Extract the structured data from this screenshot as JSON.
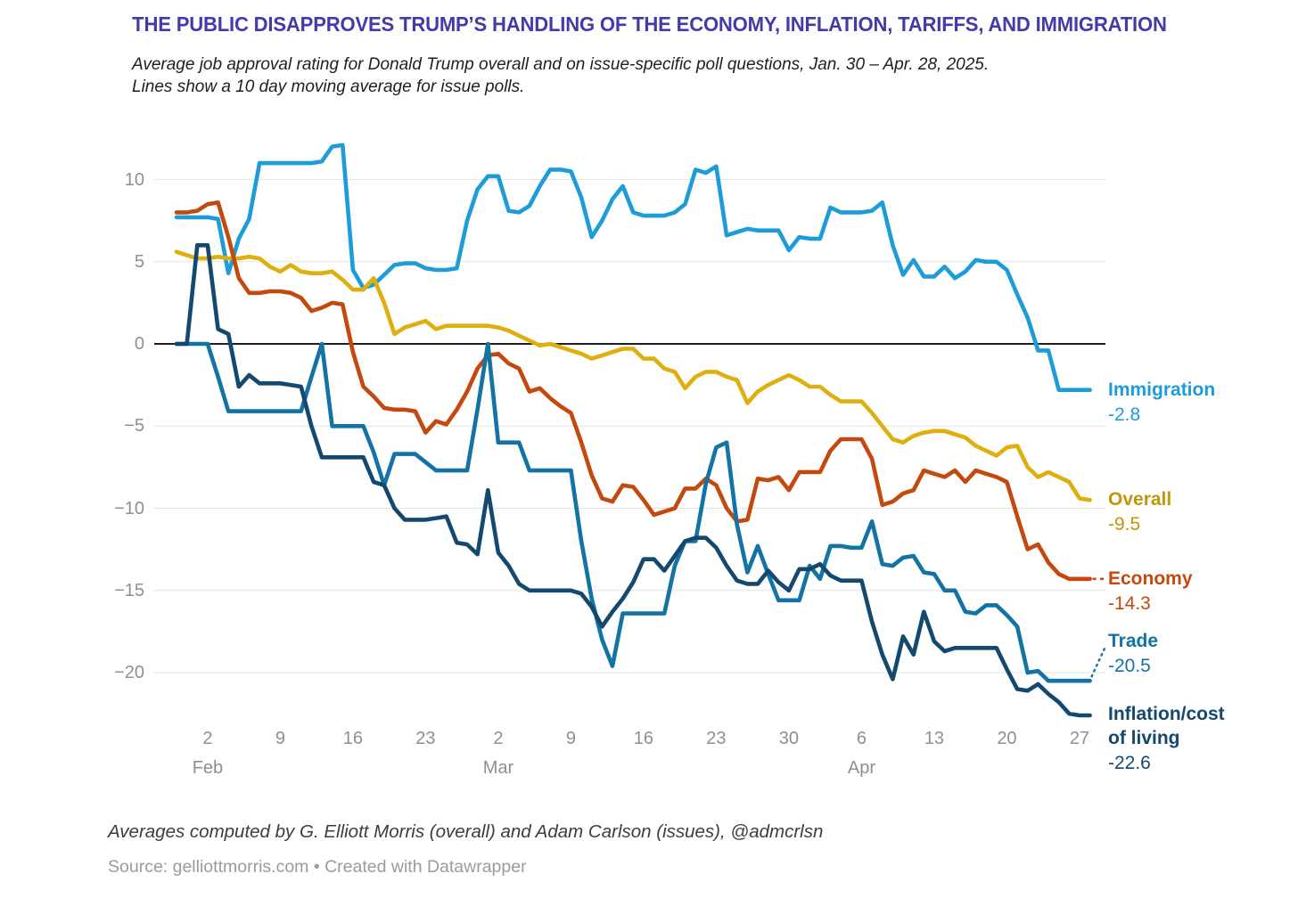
{
  "header": {
    "title": "THE PUBLIC DISAPPROVES TRUMP’S HANDLING OF THE ECONOMY, INFLATION, TARIFFS, AND IMMIGRATION",
    "subtitle_line1": "Average job approval rating for Donald Trump overall and on issue-specific poll questions, Jan. 30 – Apr. 28, 2025.",
    "subtitle_line2": "Lines show a 10 day moving average for issue polls."
  },
  "footer": {
    "credit": "Averages computed by G. Elliott Morris (overall) and Adam Carlson (issues), @admcrlsn",
    "source": "Source: gelliottmorris.com • Created with Datawrapper"
  },
  "colors": {
    "title": "#433BAB",
    "grid": "#e4e4e4",
    "zero_line": "#000000",
    "axis_text": "#8f8f8f"
  },
  "chart_data": {
    "type": "line",
    "title": "Average job approval rating for Donald Trump overall and on issue-specific poll questions",
    "date_range": "Jan. 30 – Apr. 28, 2025",
    "x_unit": "daily samples, day 0 = Jan 30 2025, day 88 = Apr 28 2025",
    "grid": "horizontal gridlines on, solid black zero line",
    "legend_position": "right of line endpoints, colored labels with end values",
    "y_axis": {
      "ticks": [
        10,
        5,
        0,
        -5,
        -10,
        -15,
        -20
      ],
      "range": [
        -24.5,
        13
      ]
    },
    "x_ticks": [
      {
        "day": 3,
        "label": "2",
        "month": "Feb"
      },
      {
        "day": 10,
        "label": "9"
      },
      {
        "day": 17,
        "label": "16"
      },
      {
        "day": 24,
        "label": "23"
      },
      {
        "day": 31,
        "label": "2",
        "month": "Mar"
      },
      {
        "day": 38,
        "label": "9"
      },
      {
        "day": 45,
        "label": "16"
      },
      {
        "day": 52,
        "label": "23"
      },
      {
        "day": 59,
        "label": "30"
      },
      {
        "day": 66,
        "label": "6",
        "month": "Apr"
      },
      {
        "day": 73,
        "label": "13"
      },
      {
        "day": 80,
        "label": "20"
      },
      {
        "day": 87,
        "label": "27"
      }
    ],
    "series": [
      {
        "id": "immigration",
        "label_lines": [
          "Immigration"
        ],
        "value_label": "-2.8",
        "end_value": -2.8,
        "color": "#1E9CD8",
        "values": [
          7.7,
          7.7,
          7.7,
          7.7,
          7.6,
          4.3,
          6.4,
          7.6,
          11.0,
          11.0,
          11.0,
          11.0,
          11.0,
          11.0,
          11.1,
          12.0,
          12.1,
          4.5,
          3.4,
          3.6,
          4.2,
          4.8,
          4.9,
          4.9,
          4.6,
          4.5,
          4.5,
          4.6,
          7.5,
          9.4,
          10.2,
          10.2,
          8.1,
          8.0,
          8.4,
          9.6,
          10.6,
          10.6,
          10.5,
          8.9,
          6.5,
          7.5,
          8.8,
          9.6,
          8.0,
          7.8,
          7.8,
          7.8,
          8.0,
          8.5,
          10.6,
          10.4,
          10.8,
          6.6,
          6.8,
          7.0,
          6.9,
          6.9,
          6.9,
          5.7,
          6.5,
          6.4,
          6.4,
          8.3,
          8.0,
          8.0,
          8.0,
          8.1,
          8.6,
          6.0,
          4.2,
          5.1,
          4.1,
          4.1,
          4.7,
          4.0,
          4.4,
          5.1,
          5.0,
          5.0,
          4.5,
          3.0,
          1.6,
          -0.4,
          -0.4,
          -2.8,
          -2.8,
          -2.8,
          -2.8
        ]
      },
      {
        "id": "overall",
        "label_lines": [
          "Overall"
        ],
        "value_label": "-9.5",
        "end_value": -9.5,
        "color": "#DFAF10",
        "label_color": "#C3940D",
        "values": [
          5.6,
          5.4,
          5.2,
          5.2,
          5.3,
          5.2,
          5.2,
          5.3,
          5.2,
          4.7,
          4.4,
          4.8,
          4.4,
          4.3,
          4.3,
          4.4,
          3.9,
          3.3,
          3.3,
          4.0,
          2.5,
          0.6,
          1.0,
          1.2,
          1.4,
          0.9,
          1.1,
          1.1,
          1.1,
          1.1,
          1.1,
          1.0,
          0.8,
          0.5,
          0.2,
          -0.1,
          0.0,
          -0.2,
          -0.4,
          -0.6,
          -0.9,
          -0.7,
          -0.5,
          -0.3,
          -0.3,
          -0.9,
          -0.9,
          -1.5,
          -1.7,
          -2.7,
          -2.0,
          -1.7,
          -1.7,
          -2.0,
          -2.2,
          -3.6,
          -2.9,
          -2.5,
          -2.2,
          -1.9,
          -2.2,
          -2.6,
          -2.6,
          -3.1,
          -3.5,
          -3.5,
          -3.5,
          -4.2,
          -5.0,
          -5.8,
          -6.0,
          -5.6,
          -5.4,
          -5.3,
          -5.3,
          -5.5,
          -5.7,
          -6.2,
          -6.5,
          -6.8,
          -6.3,
          -6.2,
          -7.5,
          -8.1,
          -7.8,
          -8.1,
          -8.4,
          -9.4,
          -9.5
        ]
      },
      {
        "id": "economy",
        "label_lines": [
          "Economy"
        ],
        "value_label": "-14.3",
        "end_value": -14.3,
        "color": "#C4490F",
        "values": [
          8.0,
          8.0,
          8.1,
          8.5,
          8.6,
          6.5,
          4.0,
          3.1,
          3.1,
          3.2,
          3.2,
          3.1,
          2.8,
          2.0,
          2.2,
          2.5,
          2.4,
          -0.5,
          -2.6,
          -3.2,
          -3.9,
          -4.0,
          -4.0,
          -4.1,
          -5.4,
          -4.7,
          -4.9,
          -4.0,
          -2.9,
          -1.5,
          -0.7,
          -0.6,
          -1.2,
          -1.5,
          -2.9,
          -2.7,
          -3.3,
          -3.8,
          -4.2,
          -6.0,
          -8.0,
          -9.4,
          -9.6,
          -8.6,
          -8.7,
          -9.5,
          -10.4,
          -10.2,
          -10.0,
          -8.8,
          -8.8,
          -8.2,
          -8.6,
          -10.0,
          -10.8,
          -10.7,
          -8.2,
          -8.3,
          -8.1,
          -8.9,
          -7.8,
          -7.8,
          -7.8,
          -6.5,
          -5.8,
          -5.8,
          -5.8,
          -7.0,
          -9.8,
          -9.6,
          -9.1,
          -8.9,
          -7.7,
          -7.9,
          -8.1,
          -7.7,
          -8.4,
          -7.7,
          -7.9,
          -8.1,
          -8.4,
          -10.5,
          -12.5,
          -12.2,
          -13.3,
          -14.0,
          -14.3,
          -14.3,
          -14.3
        ]
      },
      {
        "id": "trade",
        "label_lines": [
          "Trade"
        ],
        "value_label": "-20.5",
        "end_value": -20.5,
        "color": "#1373A4",
        "values": [
          0.0,
          0.0,
          0.0,
          0.0,
          -2.0,
          -4.1,
          -4.1,
          -4.1,
          -4.1,
          -4.1,
          -4.1,
          -4.1,
          -4.1,
          -2.0,
          0.0,
          -5.0,
          -5.0,
          -5.0,
          -5.0,
          -6.6,
          -8.6,
          -6.7,
          -6.7,
          -6.7,
          -7.2,
          -7.7,
          -7.7,
          -7.7,
          -7.7,
          -4.0,
          0.0,
          -6.0,
          -6.0,
          -6.0,
          -7.7,
          -7.7,
          -7.7,
          -7.7,
          -7.7,
          -12.0,
          -15.5,
          -18.0,
          -19.6,
          -16.4,
          -16.4,
          -16.4,
          -16.4,
          -16.4,
          -13.5,
          -12.0,
          -12.0,
          -8.5,
          -6.3,
          -6.0,
          -11.0,
          -13.9,
          -12.3,
          -14.0,
          -15.6,
          -15.6,
          -15.6,
          -13.5,
          -14.3,
          -12.3,
          -12.3,
          -12.4,
          -12.4,
          -10.8,
          -13.4,
          -13.5,
          -13.0,
          -12.9,
          -13.9,
          -14.0,
          -15.0,
          -15.0,
          -16.3,
          -16.4,
          -15.9,
          -15.9,
          -16.5,
          -17.2,
          -20.0,
          -19.9,
          -20.5,
          -20.5,
          -20.5,
          -20.5,
          -20.5
        ]
      },
      {
        "id": "inflation",
        "label_lines": [
          "Inflation/cost",
          "of living"
        ],
        "value_label": "-22.6",
        "end_value": -22.6,
        "color": "#13486F",
        "values": [
          0.0,
          0.0,
          6.0,
          6.0,
          0.9,
          0.6,
          -2.6,
          -1.9,
          -2.4,
          -2.4,
          -2.4,
          -2.5,
          -2.6,
          -5.0,
          -6.9,
          -6.9,
          -6.9,
          -6.9,
          -6.9,
          -8.4,
          -8.6,
          -10.0,
          -10.7,
          -10.7,
          -10.7,
          -10.6,
          -10.5,
          -12.1,
          -12.2,
          -12.8,
          -8.9,
          -12.7,
          -13.5,
          -14.6,
          -15.0,
          -15.0,
          -15.0,
          -15.0,
          -15.0,
          -15.2,
          -16.0,
          -17.2,
          -16.3,
          -15.5,
          -14.5,
          -13.1,
          -13.1,
          -13.8,
          -12.9,
          -12.0,
          -11.8,
          -11.8,
          -12.4,
          -13.5,
          -14.4,
          -14.6,
          -14.6,
          -13.8,
          -14.5,
          -15.0,
          -13.7,
          -13.7,
          -13.4,
          -14.1,
          -14.4,
          -14.4,
          -14.4,
          -16.9,
          -18.9,
          -20.4,
          -17.8,
          -18.9,
          -16.3,
          -18.1,
          -18.7,
          -18.5,
          -18.5,
          -18.5,
          -18.5,
          -18.5,
          -19.8,
          -21.0,
          -21.1,
          -20.7,
          -21.3,
          -21.8,
          -22.5,
          -22.6,
          -22.6
        ]
      }
    ]
  }
}
